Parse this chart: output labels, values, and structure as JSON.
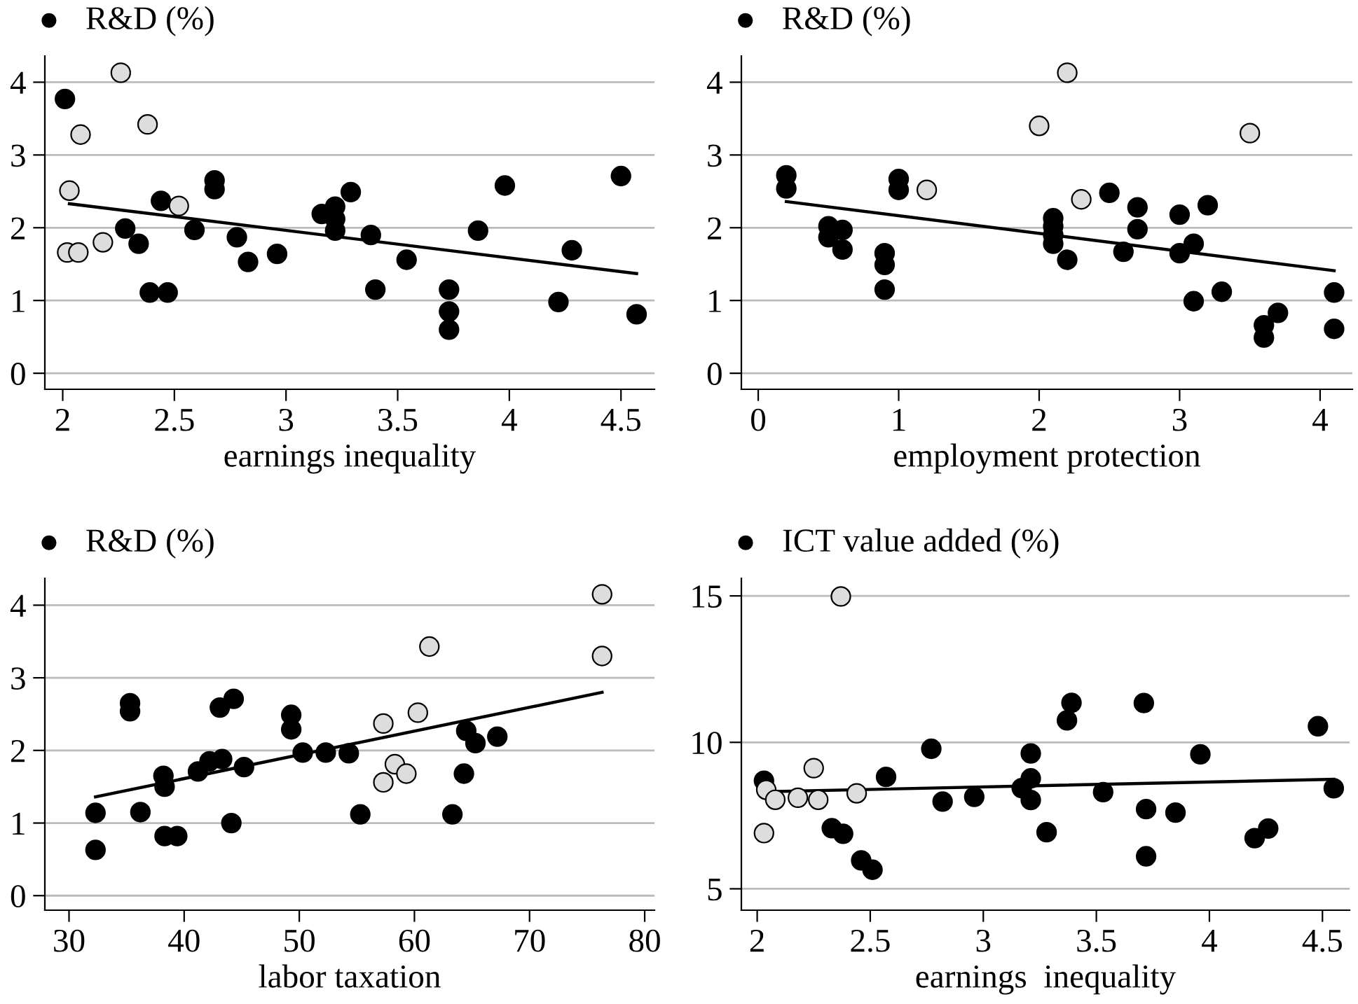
{
  "chart_data": [
    {
      "type": "scatter",
      "xlabel": "earnings inequality",
      "xlim": [
        1.92,
        4.65
      ],
      "xticks": [
        2,
        2.5,
        3,
        3.5,
        4,
        4.5
      ],
      "ylim": [
        -0.22,
        4.36
      ],
      "yticks": [
        0,
        1,
        2,
        3,
        4
      ],
      "grid": "y",
      "legend": "top left",
      "marker": "circle",
      "series": [
        {
          "name": "R&D (%)",
          "color": "#000000",
          "x": [
            2.01,
            2.28,
            2.34,
            2.39,
            2.44,
            2.47,
            2.59,
            2.68,
            2.68,
            2.78,
            2.83,
            2.96,
            3.16,
            3.22,
            3.22,
            3.22,
            3.29,
            3.38,
            3.4,
            3.54,
            3.73,
            3.73,
            3.73,
            3.86,
            3.98,
            4.22,
            4.28,
            4.5,
            4.57
          ],
          "values": [
            3.77,
            1.99,
            1.78,
            1.11,
            2.37,
            1.11,
            1.97,
            2.65,
            2.53,
            1.87,
            1.53,
            1.64,
            2.19,
            2.29,
            2.12,
            1.96,
            2.49,
            1.9,
            1.15,
            1.56,
            1.15,
            0.85,
            0.6,
            1.96,
            2.58,
            0.98,
            1.69,
            2.71,
            0.81
          ]
        },
        {
          "color": "#dddddd",
          "x": [
            2.26,
            2.38,
            2.08,
            2.03,
            2.52,
            2.18,
            2.02,
            2.07
          ],
          "values": [
            4.13,
            3.42,
            3.28,
            2.51,
            2.3,
            1.8,
            1.66,
            1.66
          ]
        },
        {
          "type": "line",
          "marker": "none",
          "color": "#000000",
          "x": [
            2.03,
            4.57
          ],
          "values": [
            2.33,
            1.37
          ]
        }
      ]
    },
    {
      "type": "scatter",
      "xlabel": "employment protection",
      "xlim": [
        -0.12,
        4.23
      ],
      "xticks": [
        0,
        1,
        2,
        3,
        4
      ],
      "ylim": [
        -0.22,
        4.36
      ],
      "yticks": [
        0,
        1,
        2,
        3,
        4
      ],
      "grid": "y",
      "legend": "top left",
      "marker": "circle",
      "series": [
        {
          "name": "R&D (%)",
          "color": "#000000",
          "x": [
            0.2,
            0.2,
            0.5,
            0.5,
            0.6,
            0.6,
            0.9,
            0.9,
            0.9,
            1.0,
            1.0,
            2.1,
            2.1,
            2.1,
            2.1,
            2.2,
            2.5,
            2.6,
            2.7,
            2.7,
            3.0,
            3.0,
            3.1,
            3.1,
            3.2,
            3.3,
            3.6,
            3.6,
            3.7,
            4.1,
            4.1
          ],
          "values": [
            2.72,
            2.54,
            2.02,
            1.87,
            1.97,
            1.7,
            1.65,
            1.49,
            1.15,
            2.67,
            2.52,
            2.13,
            2.02,
            1.9,
            1.78,
            1.56,
            2.48,
            1.67,
            2.28,
            1.98,
            2.18,
            1.65,
            1.78,
            0.99,
            2.31,
            1.12,
            0.66,
            0.49,
            0.83,
            1.11,
            0.61
          ]
        },
        {
          "color": "#dddddd",
          "x": [
            2.2,
            2.0,
            3.5,
            1.2,
            2.3
          ],
          "values": [
            4.13,
            3.4,
            3.3,
            2.52,
            2.39
          ]
        },
        {
          "type": "line",
          "marker": "none",
          "color": "#000000",
          "x": [
            0.2,
            4.1
          ],
          "values": [
            2.36,
            1.41
          ]
        }
      ]
    },
    {
      "type": "scatter",
      "xlabel": "labor taxation",
      "xlim": [
        27.9,
        80.85
      ],
      "xticks": [
        30,
        40,
        50,
        60,
        70,
        80
      ],
      "ylim": [
        -0.2,
        4.37
      ],
      "yticks": [
        0,
        1,
        2,
        3,
        4
      ],
      "grid": "y",
      "legend": "top left",
      "marker": "circle",
      "series": [
        {
          "name": "R&D (%)",
          "color": "#000000",
          "x": [
            32.3,
            32.3,
            35.3,
            35.3,
            36.2,
            38.2,
            38.3,
            38.3,
            39.4,
            41.2,
            42.2,
            43.1,
            43.3,
            44.3,
            44.1,
            45.2,
            49.3,
            49.3,
            50.3,
            52.3,
            54.3,
            55.3,
            63.3,
            64.3,
            64.5,
            65.3,
            67.2
          ],
          "values": [
            1.14,
            0.63,
            2.65,
            2.54,
            1.15,
            1.65,
            1.5,
            0.82,
            0.82,
            1.71,
            1.85,
            2.59,
            1.88,
            2.71,
            1.0,
            1.77,
            2.49,
            2.29,
            1.97,
            1.97,
            1.96,
            1.12,
            1.12,
            1.68,
            2.27,
            2.1,
            2.19
          ]
        },
        {
          "color": "#dddddd",
          "x": [
            76.3,
            76.3,
            61.3,
            60.3,
            57.3,
            58.3,
            59.3,
            57.3
          ],
          "values": [
            4.15,
            3.3,
            3.43,
            2.52,
            2.37,
            1.81,
            1.68,
            1.56
          ]
        },
        {
          "type": "line",
          "marker": "none",
          "color": "#000000",
          "x": [
            32.3,
            76.3
          ],
          "values": [
            1.36,
            2.8
          ]
        }
      ]
    },
    {
      "type": "scatter",
      "xlabel": "earnings  inequality",
      "xlim": [
        1.93,
        4.62
      ],
      "xticks": [
        2,
        2.5,
        3,
        3.5,
        4,
        4.5
      ],
      "ylim": [
        4.27,
        15.6
      ],
      "yticks": [
        5,
        10,
        15
      ],
      "grid": "y",
      "legend": "top left",
      "marker": "circle",
      "series": [
        {
          "name": "ICT value added (%)",
          "color": "#000000",
          "x": [
            2.03,
            2.33,
            2.38,
            2.46,
            2.51,
            2.57,
            2.77,
            2.82,
            2.96,
            3.17,
            3.21,
            3.21,
            3.21,
            3.28,
            3.37,
            3.39,
            3.53,
            3.71,
            3.72,
            3.72,
            3.85,
            3.96,
            4.2,
            4.26,
            4.48,
            4.55
          ],
          "values": [
            8.69,
            7.07,
            6.88,
            5.97,
            5.65,
            8.82,
            9.78,
            7.98,
            8.14,
            8.44,
            9.62,
            8.77,
            8.03,
            6.93,
            10.75,
            11.35,
            8.3,
            11.34,
            7.72,
            6.11,
            7.6,
            9.59,
            6.73,
            7.06,
            10.55,
            8.43
          ]
        },
        {
          "color": "#dddddd",
          "x": [
            2.37,
            2.25,
            2.44,
            2.04,
            2.08,
            2.18,
            2.27,
            2.03
          ],
          "values": [
            14.98,
            9.12,
            8.26,
            8.38,
            8.04,
            8.11,
            8.04,
            6.9
          ]
        },
        {
          "type": "line",
          "marker": "none",
          "color": "#000000",
          "x": [
            2.01,
            4.55
          ],
          "values": [
            8.31,
            8.74
          ]
        }
      ]
    }
  ]
}
